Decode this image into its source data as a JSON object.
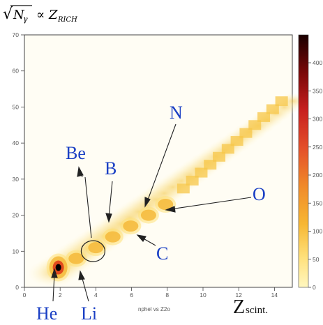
{
  "chart_data": {
    "type": "heatmap",
    "title_formula": {
      "sqrt_symbol": "√",
      "n": "N",
      "gamma": "γ",
      "prop": "∝",
      "z": "Z",
      "sub": "RICH"
    },
    "xlim": [
      0,
      15
    ],
    "ylim": [
      0,
      70
    ],
    "xticks": [
      0,
      2,
      4,
      6,
      8,
      10,
      12,
      14
    ],
    "yticks": [
      0,
      10,
      20,
      30,
      40,
      50,
      60,
      70
    ],
    "color_scale": {
      "range": [
        0,
        400
      ],
      "ticks": [
        0,
        50,
        100,
        150,
        200,
        250,
        300,
        350,
        400
      ],
      "colors": [
        "#fff7c0",
        "#ffd24a",
        "#f5a623",
        "#ef6f1a",
        "#d9261a",
        "#a01010",
        "#4a0000",
        "#000000"
      ]
    },
    "histogram_name": "nphel vs Z2o",
    "x_title": "Z",
    "x_title_sub": "scint.",
    "clusters": [
      {
        "label": "He",
        "x": 1.9,
        "y": 5.5,
        "counts": 400
      },
      {
        "label": "Li",
        "x": 2.9,
        "y": 8,
        "counts": 140
      },
      {
        "label": "Be",
        "x": 4.0,
        "y": 11,
        "counts": 25
      },
      {
        "label": "B",
        "x": 4.95,
        "y": 14,
        "counts": 90
      },
      {
        "label": "C",
        "x": 5.95,
        "y": 17,
        "counts": 120
      },
      {
        "label": "N",
        "x": 6.95,
        "y": 20,
        "counts": 90
      },
      {
        "label": "O",
        "x": 7.9,
        "y": 23,
        "counts": 95
      }
    ],
    "element_labels": [
      "Be",
      "B",
      "N",
      "O",
      "C",
      "He",
      "Li"
    ]
  }
}
